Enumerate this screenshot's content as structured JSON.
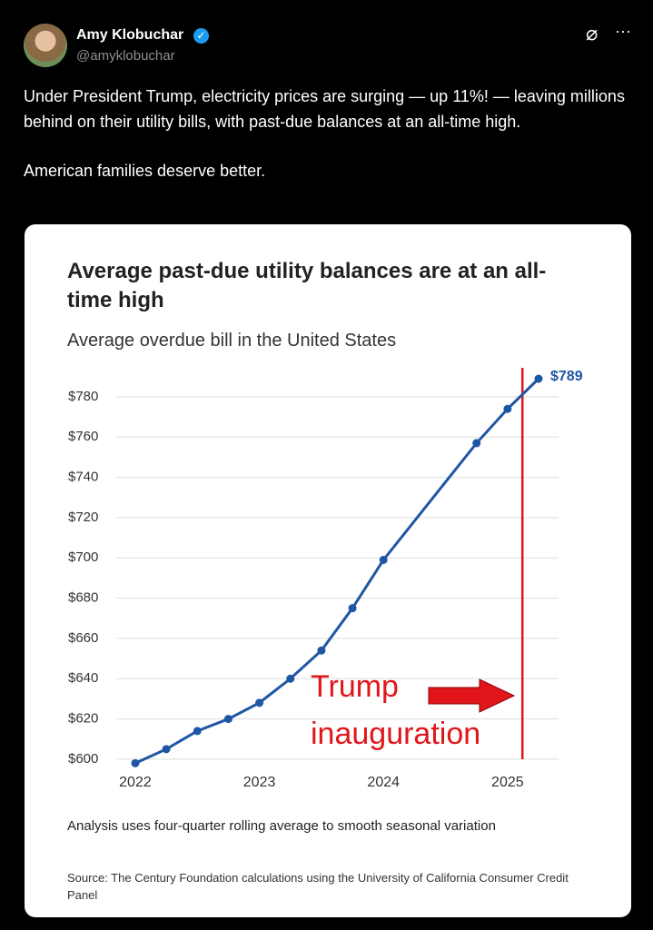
{
  "tweet": {
    "name": "Amy Klobuchar",
    "handle": "@amyklobuchar",
    "paragraphs": [
      "Under President Trump, electricity prices are surging — up 11%! — leaving millions behind on their utility bills, with past-due balances at an all-time high.",
      "American families deserve better."
    ]
  },
  "chart_data": {
    "type": "line",
    "title": "Average past-due utility balances are at an all-time high",
    "subtitle": "Average overdue bill in the United States",
    "x": [
      2022.0,
      2022.25,
      2022.5,
      2022.75,
      2023.0,
      2023.25,
      2023.5,
      2023.75,
      2024.0,
      2024.75,
      2025.0,
      2025.25
    ],
    "values": [
      598,
      605,
      614,
      620,
      628,
      640,
      654,
      675,
      699,
      757,
      774,
      789
    ],
    "value_labels": [
      null,
      null,
      null,
      null,
      null,
      null,
      null,
      null,
      null,
      null,
      null,
      "$789"
    ],
    "color": "#1f56a3",
    "xlim": [
      2021.9,
      2025.4
    ],
    "xticks": [
      2022,
      2023,
      2024,
      2025
    ],
    "ylim": [
      595,
      795
    ],
    "yticks": [
      {
        "value": 600,
        "label": "$600"
      },
      {
        "value": 620,
        "label": "$620"
      },
      {
        "value": 640,
        "label": "$640"
      },
      {
        "value": 660,
        "label": "$660"
      },
      {
        "value": 680,
        "label": "$680"
      },
      {
        "value": 700,
        "label": "$700"
      },
      {
        "value": 720,
        "label": "$720"
      },
      {
        "value": 740,
        "label": "$740"
      },
      {
        "value": 760,
        "label": "$760"
      },
      {
        "value": 780,
        "label": "$780"
      }
    ],
    "grid": true,
    "annotation": {
      "lines": [
        "Trump",
        "inauguration"
      ],
      "x": 2025.12,
      "color": "#e0161b"
    },
    "note": "Analysis uses four-quarter rolling average to smooth seasonal variation",
    "source": "Source: The Century Foundation calculations using the University of California Consumer Credit Panel"
  }
}
